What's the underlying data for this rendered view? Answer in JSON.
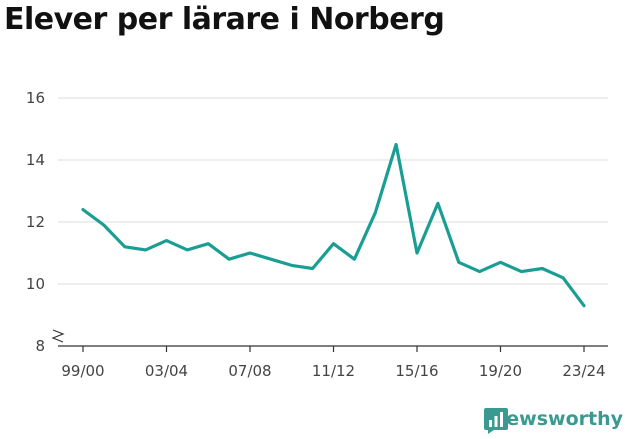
{
  "chart_data": {
    "type": "line",
    "title": "Elever per lärare i Norberg",
    "xlabel": "",
    "ylabel": "",
    "ylim": [
      8,
      16
    ],
    "yticks": [
      8,
      10,
      12,
      14,
      16
    ],
    "categories": [
      "99/00",
      "00/01",
      "01/02",
      "02/03",
      "03/04",
      "04/05",
      "05/06",
      "06/07",
      "07/08",
      "08/09",
      "09/10",
      "10/11",
      "11/12",
      "12/13",
      "13/14",
      "14/15",
      "15/16",
      "16/17",
      "17/18",
      "18/19",
      "19/20",
      "20/21",
      "21/22",
      "22/23",
      "23/24"
    ],
    "xtick_labels": [
      "99/00",
      "03/04",
      "07/08",
      "11/12",
      "15/16",
      "19/20",
      "23/24"
    ],
    "series": [
      {
        "values": [
          12.4,
          11.9,
          11.2,
          11.1,
          11.4,
          11.1,
          11.3,
          10.8,
          11.0,
          10.8,
          10.6,
          10.5,
          11.3,
          10.8,
          12.3,
          14.5,
          11.0,
          12.6,
          10.7,
          10.4,
          10.7,
          10.4,
          10.5,
          10.2,
          9.3
        ],
        "color": "#1a9e94"
      }
    ],
    "grid": true,
    "axis_break": true
  },
  "branding": {
    "name": "Newsworthy",
    "icon": "newsworthy-logo-icon",
    "color": "#3a9a92"
  }
}
